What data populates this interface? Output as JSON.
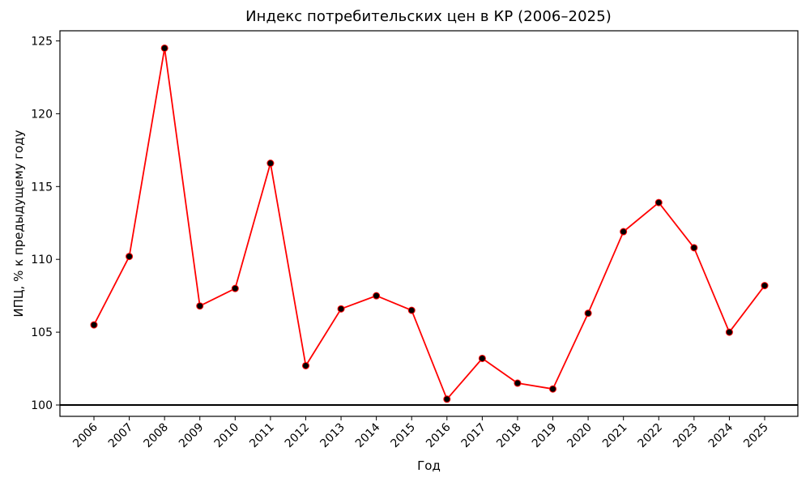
{
  "chart_data": {
    "type": "line",
    "title": "Индекс потребительских цен в КР (2006–2025)",
    "xlabel": "Год",
    "ylabel": "ИПЦ, % к предыдущему году",
    "categories": [
      "2006",
      "2007",
      "2008",
      "2009",
      "2010",
      "2011",
      "2012",
      "2013",
      "2014",
      "2015",
      "2016",
      "2017",
      "2018",
      "2019",
      "2020",
      "2021",
      "2022",
      "2023",
      "2024",
      "2025"
    ],
    "series": [
      {
        "name": "ИПЦ",
        "values": [
          105.5,
          110.2,
          124.5,
          106.8,
          108.0,
          116.6,
          102.7,
          106.6,
          107.5,
          106.5,
          100.4,
          103.2,
          101.5,
          101.1,
          106.3,
          111.9,
          113.9,
          110.8,
          105.0,
          108.2
        ],
        "line_color": "#ff0000",
        "marker_color": "#000000",
        "marker_edge_color": "#ff0000"
      }
    ],
    "yticks": [
      100,
      105,
      110,
      115,
      120,
      125
    ],
    "ylim": [
      99.2,
      125.7
    ],
    "reference_line": {
      "y": 100,
      "color": "#000000"
    },
    "grid": false,
    "legend": null,
    "xtick_rotation": 45
  }
}
